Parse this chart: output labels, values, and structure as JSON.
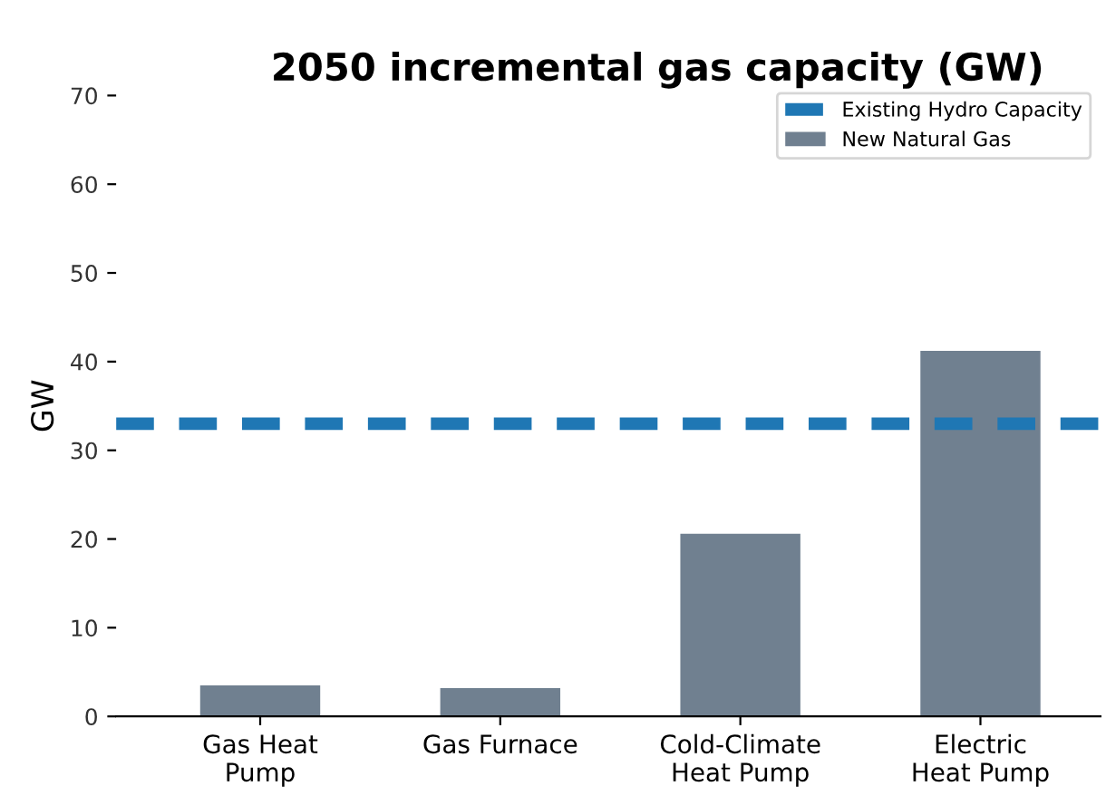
{
  "chart_data": {
    "type": "bar",
    "title": "2050 incremental gas capacity (GW)",
    "ylabel": "GW",
    "categories": [
      "Gas Heat\nPump",
      "Gas Furnace",
      "Cold-Climate\nHeat Pump",
      "Electric\nHeat Pump"
    ],
    "series": [
      {
        "name": "New Natural Gas",
        "color": "#708090",
        "values": [
          3.5,
          3.2,
          20.6,
          41.2
        ]
      }
    ],
    "ref_lines": [
      {
        "axis": "y",
        "value": 33,
        "label": "Existing Hydro Capacity",
        "color": "#1f77b4",
        "line_style": "dashed"
      }
    ],
    "ylim": [
      0,
      70
    ],
    "yticks": [
      0,
      10,
      20,
      30,
      40,
      50,
      60,
      70
    ],
    "grid": false,
    "legend": "top right"
  }
}
